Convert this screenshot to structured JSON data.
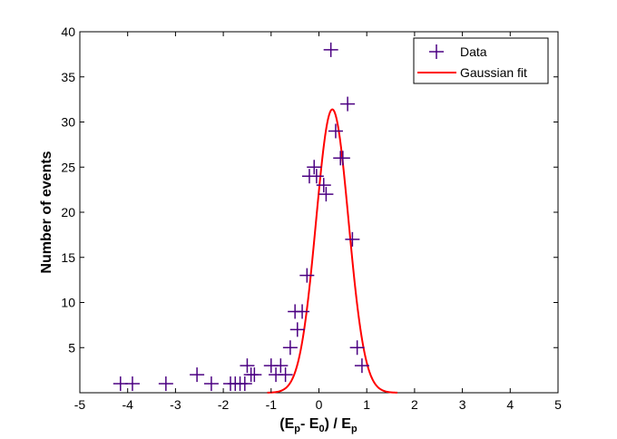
{
  "chart_data": {
    "type": "scatter",
    "xlabel": {
      "prefix": "(E",
      "sub1": "p",
      "mid": "- E",
      "sub2": "0",
      "mid2": ") / E",
      "sub3": "p"
    },
    "ylabel": "Number of events",
    "xlim": [
      -5,
      5
    ],
    "ylim": [
      0,
      40
    ],
    "xticks": [
      "-5",
      "-4",
      "-3",
      "-2",
      "-1",
      "0",
      "1",
      "2",
      "3",
      "4",
      "5"
    ],
    "yticks": [
      "5",
      "10",
      "15",
      "20",
      "25",
      "30",
      "35",
      "40"
    ],
    "grid": false,
    "legend_position": "top-right",
    "series": [
      {
        "name": "Data",
        "kind": "scatter",
        "marker": "plus",
        "color": "#4B0082",
        "x": [
          -4.15,
          -3.9,
          -3.2,
          -2.55,
          -2.25,
          -1.85,
          -1.75,
          -1.65,
          -1.55,
          -1.5,
          -1.42,
          -1.35,
          -1.0,
          -0.9,
          -0.8,
          -0.7,
          -0.6,
          -0.5,
          -0.45,
          -0.35,
          -0.25,
          -0.2,
          -0.1,
          -0.05,
          0.1,
          0.15,
          0.25,
          0.35,
          0.45,
          0.5,
          0.6,
          0.7,
          0.8,
          0.9
        ],
        "y": [
          1,
          1,
          1,
          2,
          1,
          1,
          1,
          1,
          1,
          3,
          2,
          2,
          3,
          2,
          3,
          2,
          5,
          9,
          7,
          9,
          13,
          24,
          25,
          24,
          23,
          22,
          38,
          29,
          26,
          26,
          32,
          17,
          5,
          3
        ]
      },
      {
        "name": "Gaussian fit",
        "kind": "line",
        "color": "#FF0000",
        "amplitude": 31.4,
        "mean": 0.28,
        "sigma": 0.34
      }
    ]
  }
}
